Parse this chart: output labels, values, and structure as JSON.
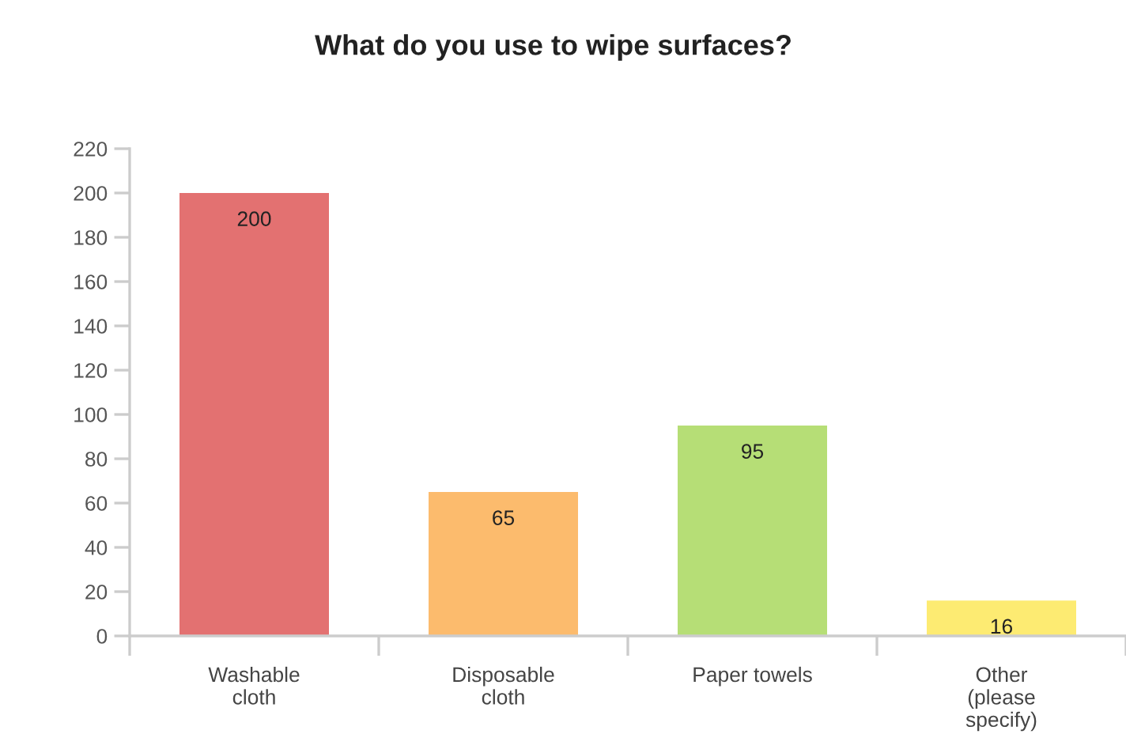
{
  "chart_data": {
    "type": "bar",
    "title": "What do you use to wipe surfaces?",
    "categories": [
      "Washable\ncloth",
      "Disposable\ncloth",
      "Paper towels",
      "Other\n(please\nspecify)"
    ],
    "values": [
      200,
      65,
      95,
      16
    ],
    "colors": [
      "#e37171",
      "#fcbb6d",
      "#b6de76",
      "#fdeb72"
    ],
    "ylim": [
      0,
      220
    ],
    "yticks": [
      0,
      20,
      40,
      60,
      80,
      100,
      120,
      140,
      160,
      180,
      200,
      220
    ],
    "grid": false,
    "data_labels": true
  }
}
